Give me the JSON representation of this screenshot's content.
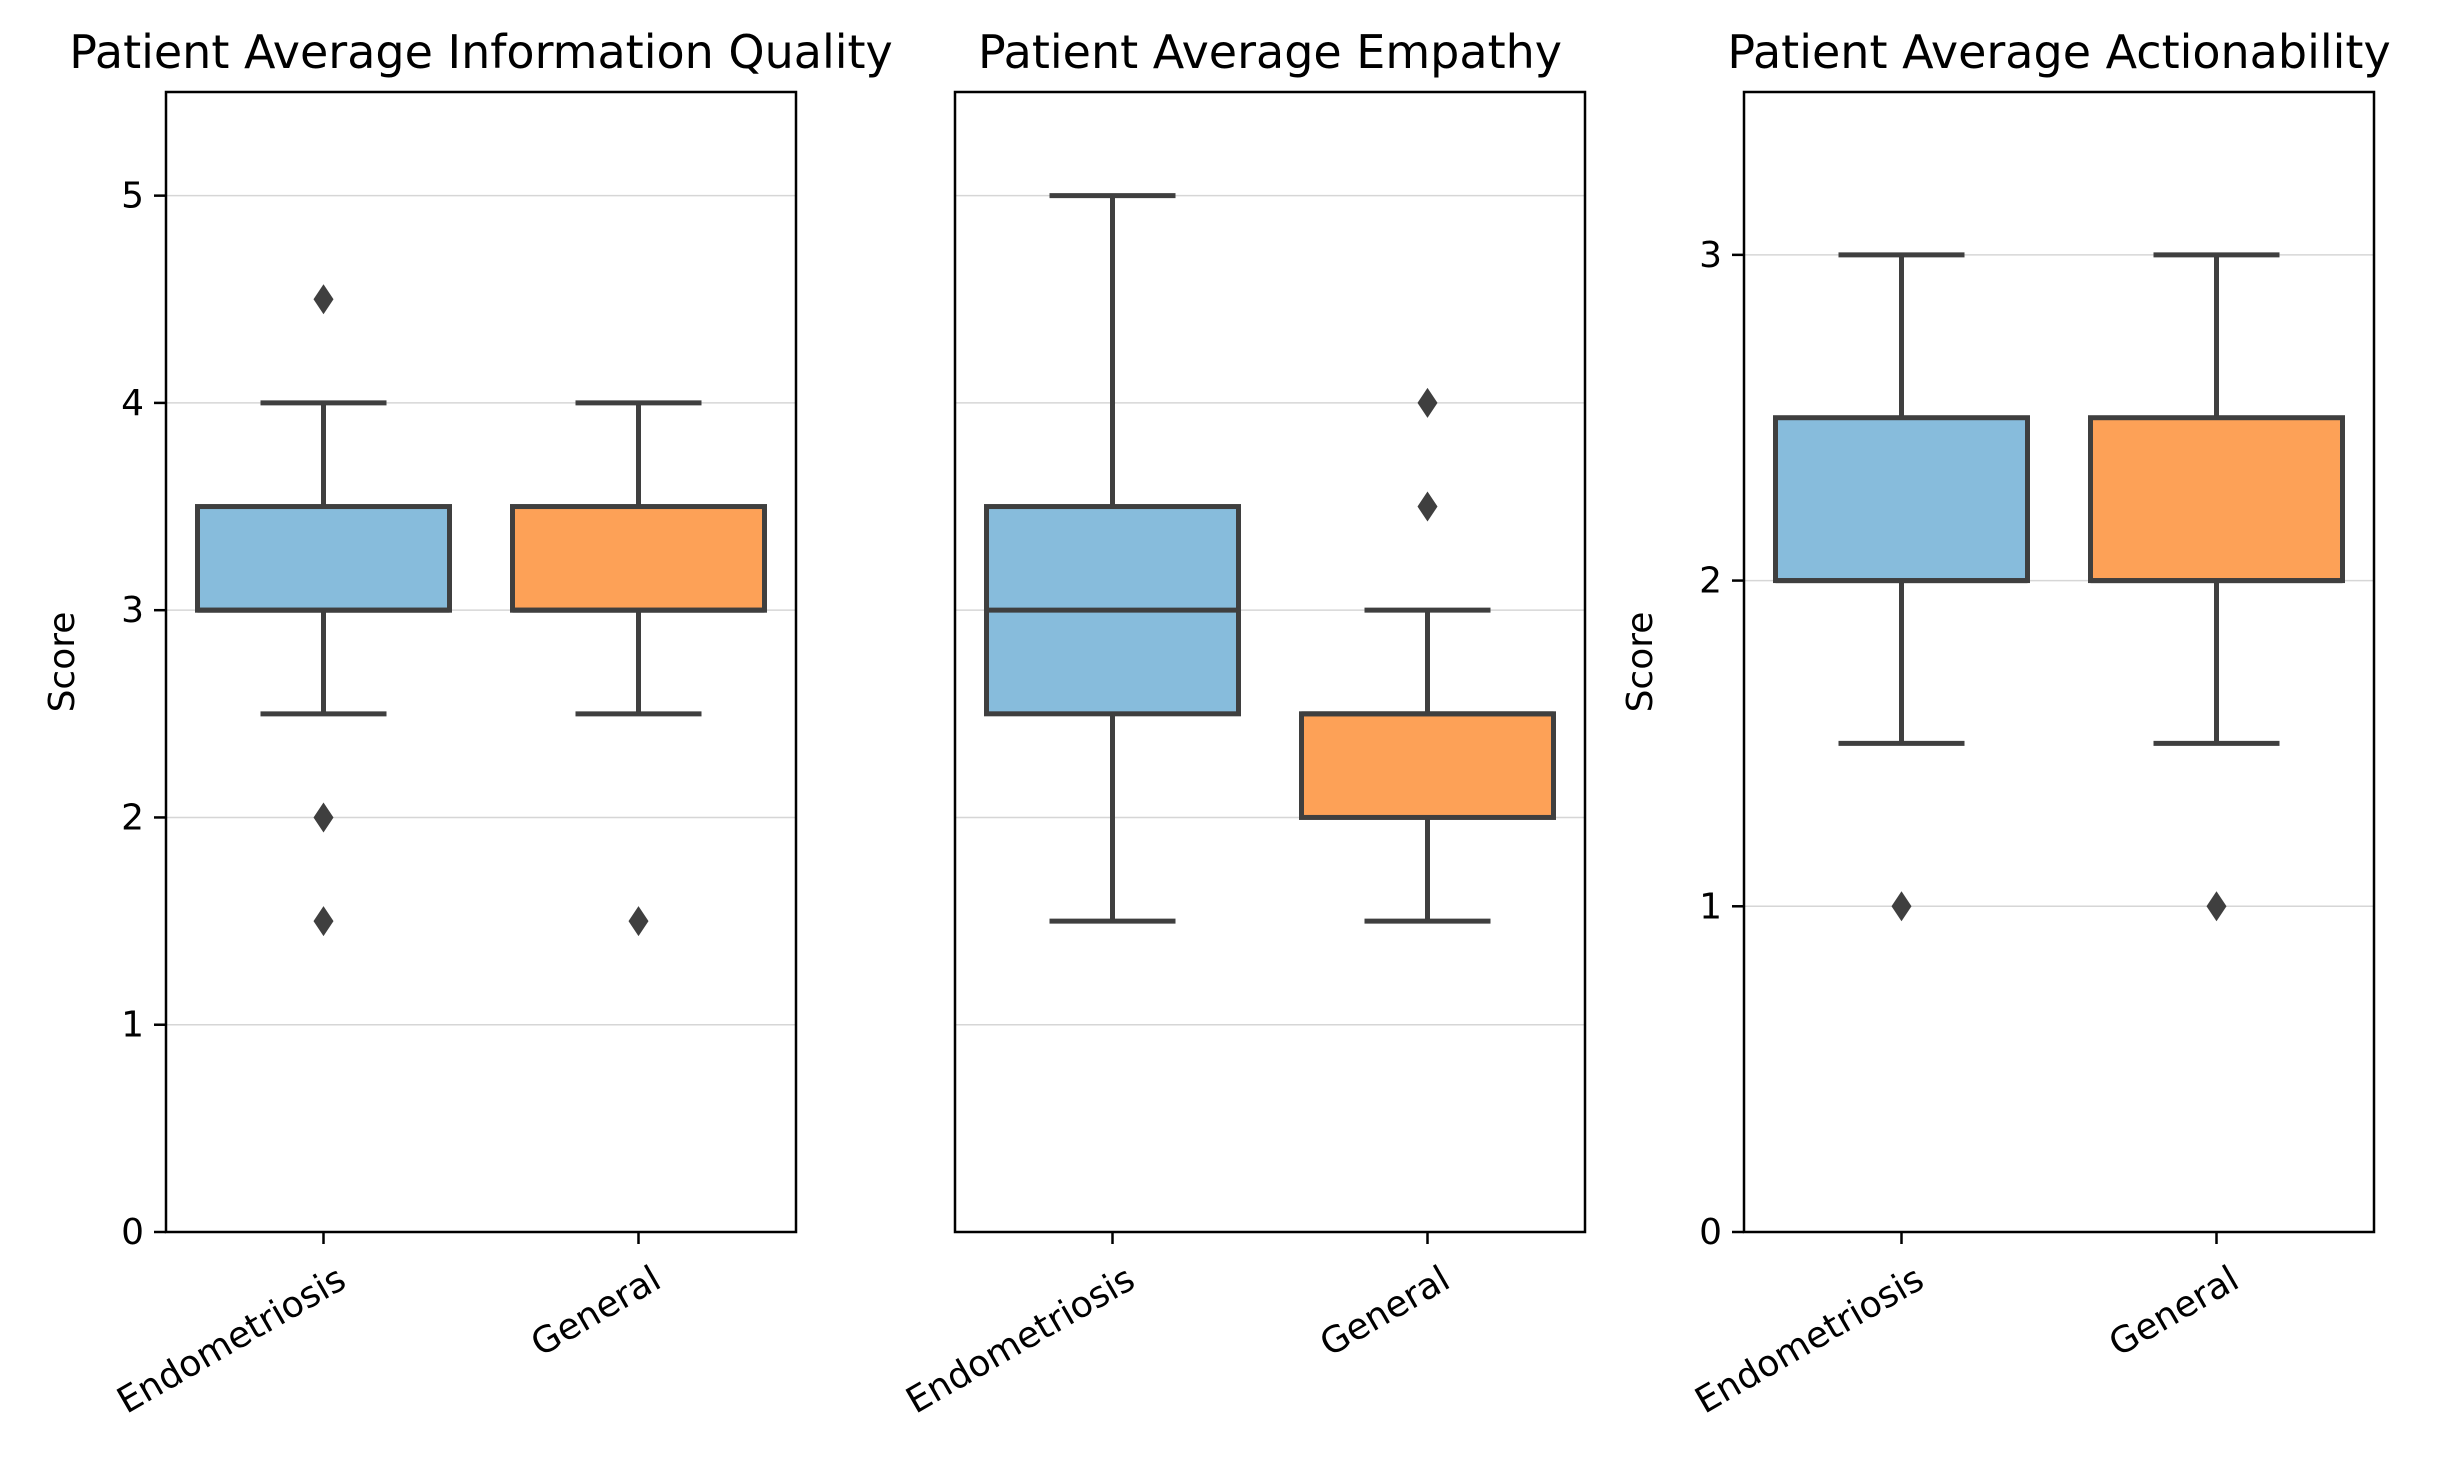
{
  "chart_data": [
    {
      "type": "box",
      "title": "Patient Average Information Quality",
      "ylabel": "Score",
      "ylim": [
        0,
        5.5
      ],
      "yticks": [
        "0",
        "1",
        "2",
        "3",
        "4",
        "5"
      ],
      "grid": "horizontal",
      "categories": [
        "Endometriosis",
        "General"
      ],
      "boxes": [
        {
          "category": "Endometriosis",
          "color": "#87BCDC",
          "whisker_low": 2.5,
          "q1": 3.0,
          "median": 3.0,
          "q3": 3.5,
          "whisker_high": 4.0,
          "outliers": [
            4.5,
            2.0,
            1.5
          ]
        },
        {
          "category": "General",
          "color": "#FDA157",
          "whisker_low": 2.5,
          "q1": 3.0,
          "median": 3.0,
          "q3": 3.5,
          "whisker_high": 4.0,
          "outliers": [
            1.5
          ]
        }
      ]
    },
    {
      "type": "box",
      "title": "Patient Average Empathy",
      "ylabel": "",
      "ylim": [
        0,
        5.5
      ],
      "yticks": [],
      "grid": "horizontal",
      "categories": [
        "Endometriosis",
        "General"
      ],
      "boxes": [
        {
          "category": "Endometriosis",
          "color": "#87BCDC",
          "whisker_low": 1.5,
          "q1": 2.5,
          "median": 3.0,
          "q3": 3.5,
          "whisker_high": 5.0,
          "outliers": []
        },
        {
          "category": "General",
          "color": "#FDA157",
          "whisker_low": 1.5,
          "q1": 2.0,
          "median": 2.5,
          "q3": 2.5,
          "whisker_high": 3.0,
          "outliers": [
            4.0,
            3.5
          ]
        }
      ]
    },
    {
      "type": "box",
      "title": "Patient Average Actionability",
      "ylabel": "Score",
      "ylim": [
        0,
        3.5
      ],
      "yticks": [
        "0",
        "1",
        "2",
        "3"
      ],
      "grid": "horizontal",
      "categories": [
        "Endometriosis",
        "General"
      ],
      "boxes": [
        {
          "category": "Endometriosis",
          "color": "#87BCDC",
          "whisker_low": 1.5,
          "q1": 2.0,
          "median": 2.0,
          "q3": 2.5,
          "whisker_high": 3.0,
          "outliers": [
            1.0
          ]
        },
        {
          "category": "General",
          "color": "#FDA157",
          "whisker_low": 1.5,
          "q1": 2.0,
          "median": 2.0,
          "q3": 2.5,
          "whisker_high": 3.0,
          "outliers": [
            1.0
          ]
        }
      ]
    }
  ]
}
